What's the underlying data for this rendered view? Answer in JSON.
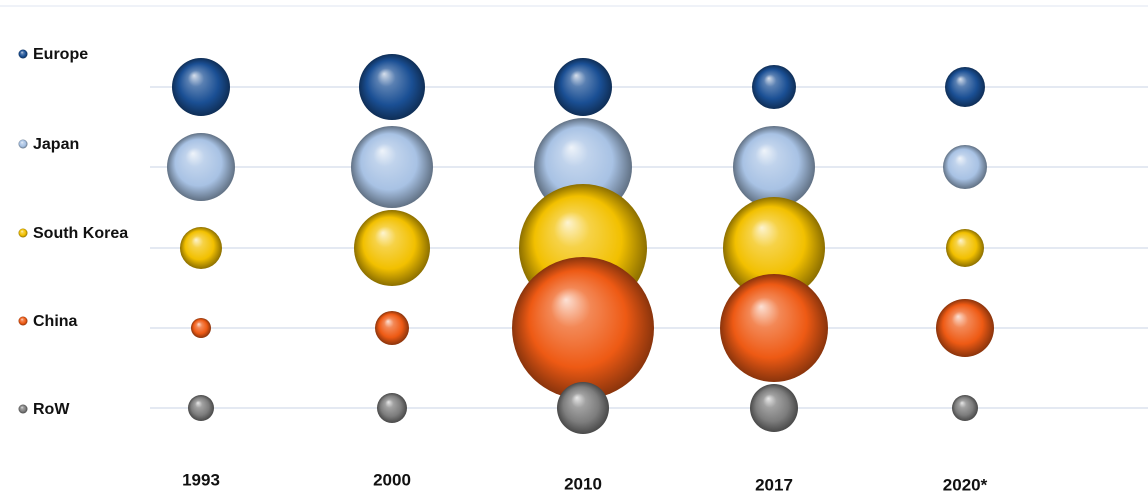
{
  "chart_data": {
    "type": "bubble",
    "title": "",
    "xlabel": "",
    "ylabel": "",
    "x": [
      "1993",
      "2000",
      "2010",
      "2017",
      "2020*"
    ],
    "legend_position": "left",
    "grid": true,
    "series": [
      {
        "name": "Europe",
        "color": "#1a4f94",
        "values": [
          2.9,
          3.3,
          2.9,
          2.2,
          2.0
        ]
      },
      {
        "name": "Japan",
        "color": "#a8c2e4",
        "values": [
          3.4,
          4.1,
          4.9,
          4.1,
          2.2
        ]
      },
      {
        "name": "South Korea",
        "color": "#f2c000",
        "values": [
          2.1,
          3.8,
          6.4,
          5.1,
          1.9
        ]
      },
      {
        "name": "China",
        "color": "#ee5a14",
        "values": [
          1.0,
          1.7,
          7.1,
          5.4,
          2.9
        ]
      },
      {
        "name": "RoW",
        "color": "#7d7d7d",
        "values": [
          1.3,
          1.5,
          2.6,
          2.4,
          1.3
        ]
      }
    ]
  }
}
